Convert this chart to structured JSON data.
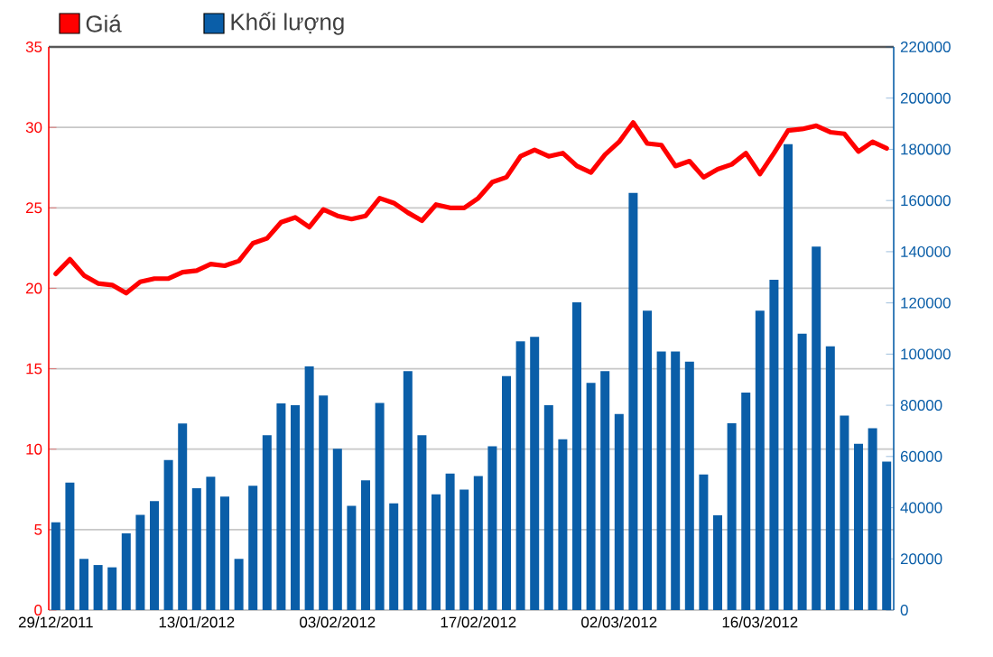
{
  "chart_data": {
    "type": "bar",
    "categories": [
      "29/12/2011",
      null,
      null,
      null,
      null,
      null,
      null,
      null,
      null,
      null,
      "13/01/2012",
      null,
      null,
      null,
      null,
      null,
      null,
      null,
      null,
      null,
      "03/02/2012",
      null,
      null,
      null,
      null,
      null,
      null,
      null,
      null,
      null,
      "17/02/2012",
      null,
      null,
      null,
      null,
      null,
      null,
      null,
      null,
      null,
      "02/03/2012",
      null,
      null,
      null,
      null,
      null,
      null,
      null,
      null,
      null,
      "16/03/2012",
      null,
      null,
      null,
      null,
      null,
      null,
      null,
      null,
      null
    ],
    "series": [
      {
        "name": "Giá",
        "type": "line",
        "color": "#ff0000",
        "values": [
          20.9,
          21.8,
          20.8,
          20.3,
          20.2,
          19.7,
          20.4,
          20.6,
          20.6,
          21.0,
          21.1,
          21.5,
          21.4,
          21.7,
          22.8,
          23.1,
          24.1,
          24.4,
          23.8,
          24.9,
          24.5,
          24.3,
          24.5,
          25.6,
          25.3,
          24.7,
          24.2,
          25.2,
          25.0,
          25.0,
          25.6,
          26.6,
          26.9,
          28.2,
          28.6,
          28.2,
          28.4,
          27.6,
          27.2,
          28.3,
          29.1,
          30.3,
          29.0,
          28.9,
          27.6,
          27.9,
          26.9,
          27.4,
          27.7,
          28.4,
          27.1,
          28.4,
          29.8,
          29.9,
          30.1,
          29.7,
          29.6,
          28.5,
          29.1,
          28.7
        ]
      },
      {
        "name": "Khối lượng",
        "axis": "y2",
        "color": "#0a5ea8",
        "values": [
          34300,
          49800,
          20000,
          17600,
          16700,
          30000,
          37200,
          42600,
          58600,
          72900,
          47600,
          52100,
          44300,
          20000,
          48600,
          68300,
          80700,
          80000,
          95200,
          83800,
          63000,
          40700,
          50700,
          80900,
          41700,
          93300,
          68300,
          45200,
          53300,
          47100,
          52400,
          64000,
          91400,
          105000,
          106700,
          80000,
          66700,
          120200,
          88800,
          93300,
          76600,
          163000,
          117000,
          101000,
          101000,
          97000,
          53000,
          37000,
          73000,
          85000,
          117000,
          129000,
          182000,
          108000,
          142000,
          103000,
          76000,
          65000,
          71000,
          58000
        ]
      }
    ],
    "ylim": [
      0,
      35
    ],
    "yticks": [
      0,
      5,
      10,
      15,
      20,
      25,
      30,
      35
    ],
    "y2lim": [
      0,
      220000
    ],
    "y2ticks": [
      0,
      20000,
      40000,
      60000,
      80000,
      100000,
      120000,
      140000,
      160000,
      180000,
      200000,
      220000
    ],
    "grid": "y",
    "legend": "top left",
    "marker": "none"
  }
}
